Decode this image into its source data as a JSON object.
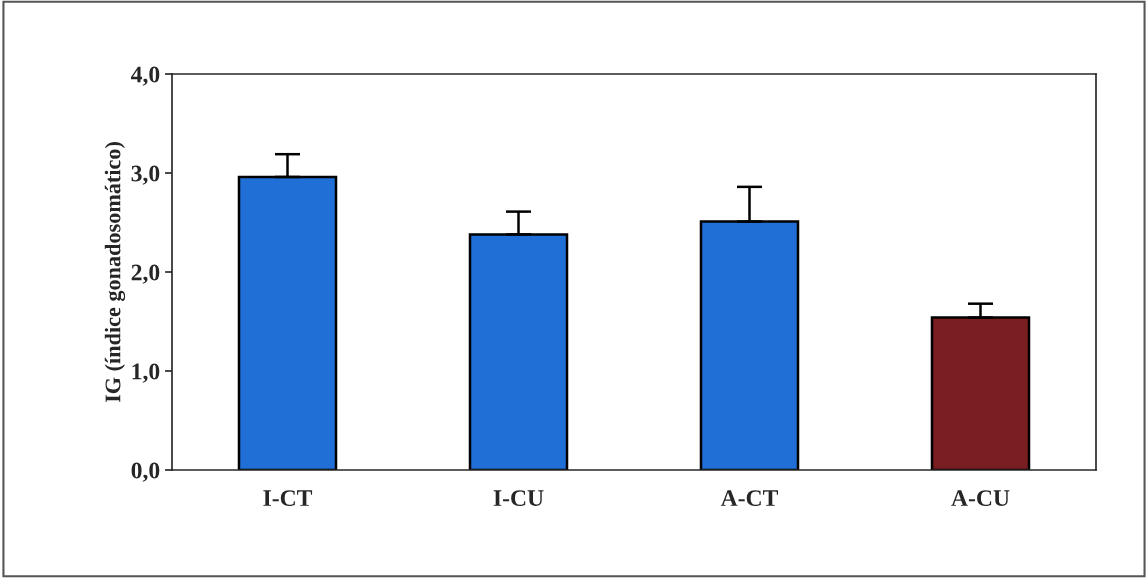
{
  "chart_data": {
    "type": "bar",
    "ylabel": "IG (índice gonadosomático)",
    "categories": [
      "I-CT",
      "I-CU",
      "A-CT",
      "A-CU"
    ],
    "values": [
      2.96,
      2.38,
      2.51,
      1.54
    ],
    "errors": [
      0.23,
      0.23,
      0.35,
      0.14
    ],
    "colors": [
      "#1f6fd6",
      "#1f6fd6",
      "#1f6fd6",
      "#7a1e22"
    ],
    "ylim": [
      0,
      4
    ],
    "yticks": [
      {
        "value": 0,
        "label": "0,0"
      },
      {
        "value": 1,
        "label": "1,0"
      },
      {
        "value": 2,
        "label": "2,0"
      },
      {
        "value": 3,
        "label": "3,0"
      },
      {
        "value": 4,
        "label": "4,0"
      }
    ],
    "grid": false
  }
}
